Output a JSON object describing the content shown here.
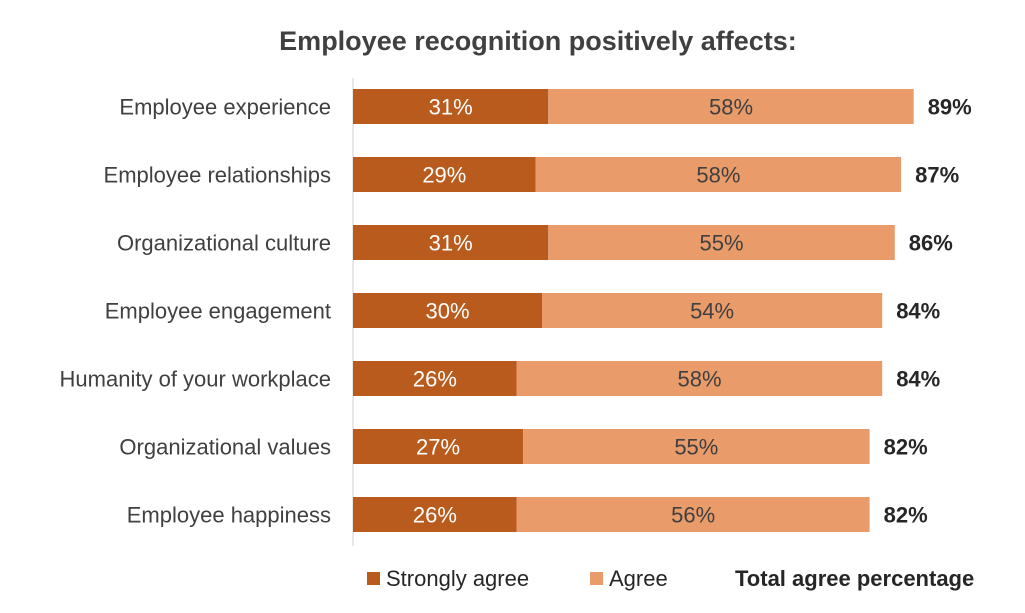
{
  "chart_data": {
    "type": "bar",
    "orientation": "horizontal",
    "stacked": true,
    "title": "Employee recognition positively affects:",
    "categories": [
      "Employee experience",
      "Employee relationships",
      "Organizational culture",
      "Employee engagement",
      "Humanity of your workplace",
      "Organizational values",
      "Employee happiness"
    ],
    "series": [
      {
        "name": "Strongly agree",
        "color": "#BA5B1E",
        "values": [
          31,
          29,
          31,
          30,
          26,
          27,
          26
        ]
      },
      {
        "name": "Agree",
        "color": "#E99B6A",
        "values": [
          58,
          58,
          55,
          54,
          58,
          55,
          56
        ]
      }
    ],
    "totals": [
      89,
      87,
      86,
      84,
      84,
      82,
      82
    ],
    "total_label": "Total agree percentage",
    "value_suffix": "%",
    "xlim": [
      0,
      100
    ],
    "grid": false,
    "legend": "bottom"
  }
}
